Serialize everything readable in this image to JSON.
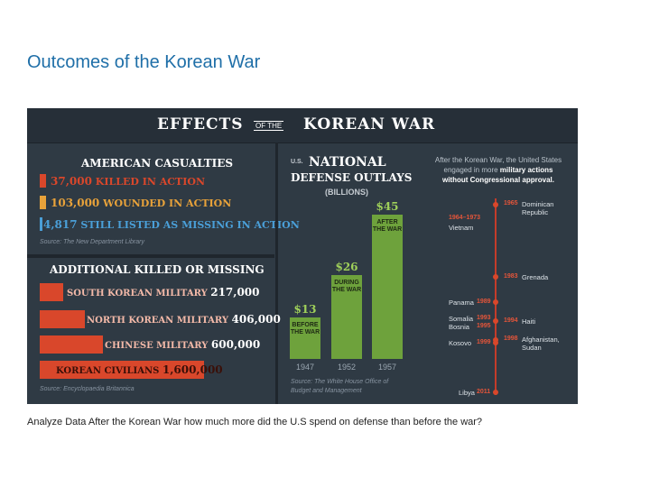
{
  "slide": {
    "title": "Outcomes of the Korean War",
    "question": "Analyze Data After the Korean War how much more did the U.S spend on defense than before the war?"
  },
  "infographic": {
    "title_left": "EFFECTS",
    "title_of_the": "OF THE",
    "title_right": "KOREAN WAR",
    "casualties": {
      "heading": "AMERICAN CASUALTIES",
      "items": [
        {
          "number": "37,000",
          "label": "KILLED IN ACTION",
          "color": "#d9472b"
        },
        {
          "number": "103,000",
          "label": "WOUNDED IN ACTION",
          "color": "#e8a23a"
        },
        {
          "number": "4,817",
          "label": "STILL LISTED AS MISSING IN ACTION",
          "color": "#4a9fd8"
        }
      ],
      "source": "Source: The New Department Library"
    },
    "additional": {
      "heading": "ADDITIONAL KILLED OR MISSING",
      "items": [
        {
          "label": "SOUTH KOREAN MILITARY",
          "number": "217,000"
        },
        {
          "label": "NORTH KOREAN MILITARY",
          "number": "406,000"
        },
        {
          "label": "CHINESE MILITARY",
          "number": "600,000"
        },
        {
          "label": "KOREAN CIVILIANS",
          "number": "1,600,000"
        }
      ],
      "source": "Source: Encyclopaedia Britannica"
    },
    "spending": {
      "label_us": "U.S.",
      "label_national": "NATIONAL",
      "label_defense": "DEFENSE OUTLAYS",
      "label_unit": "(BILLIONS)",
      "source_line1": "Source: The White House Office of",
      "source_line2": "Budget and Management",
      "chart_data": {
        "type": "bar",
        "categories": [
          "1947",
          "1952",
          "1957"
        ],
        "values": [
          13,
          26,
          45
        ],
        "value_labels": [
          "$13",
          "$26",
          "$45"
        ],
        "notes": [
          [
            "BEFORE",
            "THE WAR"
          ],
          [
            "DURING",
            "THE WAR"
          ],
          [
            "AFTER",
            "THE WAR"
          ]
        ],
        "ylim": [
          0,
          50
        ],
        "bar_color": "#6ea23c"
      }
    },
    "timeline": {
      "intro_pre": "After the Korean War, the United States engaged in more",
      "intro_bold": "military actions without Congressional approval.",
      "right_events": [
        {
          "year": "1965",
          "name_line1": "Dominican",
          "name_line2": "Republic"
        },
        {
          "year": "1983",
          "name_line1": "Grenada",
          "name_line2": ""
        },
        {
          "year": "1994",
          "name_line1": "Haiti",
          "name_line2": ""
        },
        {
          "year": "1998",
          "name_line1": "Afghanistan,",
          "name_line2": "Sudan"
        }
      ],
      "left_events": [
        {
          "year": "1964–1973",
          "name": "Vietnam"
        },
        {
          "year": "1989",
          "name": "Panama"
        },
        {
          "year": "1993",
          "name": "Somalia"
        },
        {
          "year": "1995",
          "name": "Bosnia"
        },
        {
          "year": "1999",
          "name": "Kosovo"
        },
        {
          "year": "2011",
          "name": "Libya"
        }
      ]
    }
  }
}
